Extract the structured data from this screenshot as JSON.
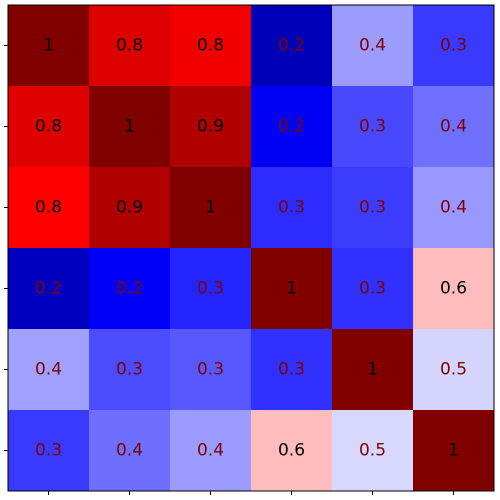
{
  "chart_data": {
    "type": "heatmap",
    "values": [
      [
        1,
        0.8,
        0.8,
        0.2,
        0.4,
        0.3
      ],
      [
        0.8,
        1,
        0.9,
        0.2,
        0.3,
        0.4
      ],
      [
        0.8,
        0.9,
        1,
        0.3,
        0.3,
        0.4
      ],
      [
        0.2,
        0.2,
        0.3,
        1,
        0.3,
        0.6
      ],
      [
        0.4,
        0.3,
        0.3,
        0.3,
        1,
        0.5
      ],
      [
        0.3,
        0.4,
        0.4,
        0.6,
        0.5,
        1
      ]
    ],
    "colors": [
      [
        "#800000",
        "#dc0000",
        "#f20000",
        "#0000b8",
        "#9c9cff",
        "#3a3aff"
      ],
      [
        "#e00000",
        "#800000",
        "#b00000",
        "#0000f5",
        "#4848ff",
        "#7070ff"
      ],
      [
        "#ff0000",
        "#b00000",
        "#800000",
        "#2c2cff",
        "#3c3cff",
        "#9898ff"
      ],
      [
        "#0000c0",
        "#0000f8",
        "#2424ff",
        "#800000",
        "#3030ff",
        "#ffbcbc"
      ],
      [
        "#a0a0ff",
        "#4c4cff",
        "#5858ff",
        "#3030ff",
        "#800000",
        "#d4d4ff"
      ],
      [
        "#3a3aff",
        "#6e6eff",
        "#9a9aff",
        "#ffbcbc",
        "#d8d8ff",
        "#800000"
      ]
    ]
  }
}
